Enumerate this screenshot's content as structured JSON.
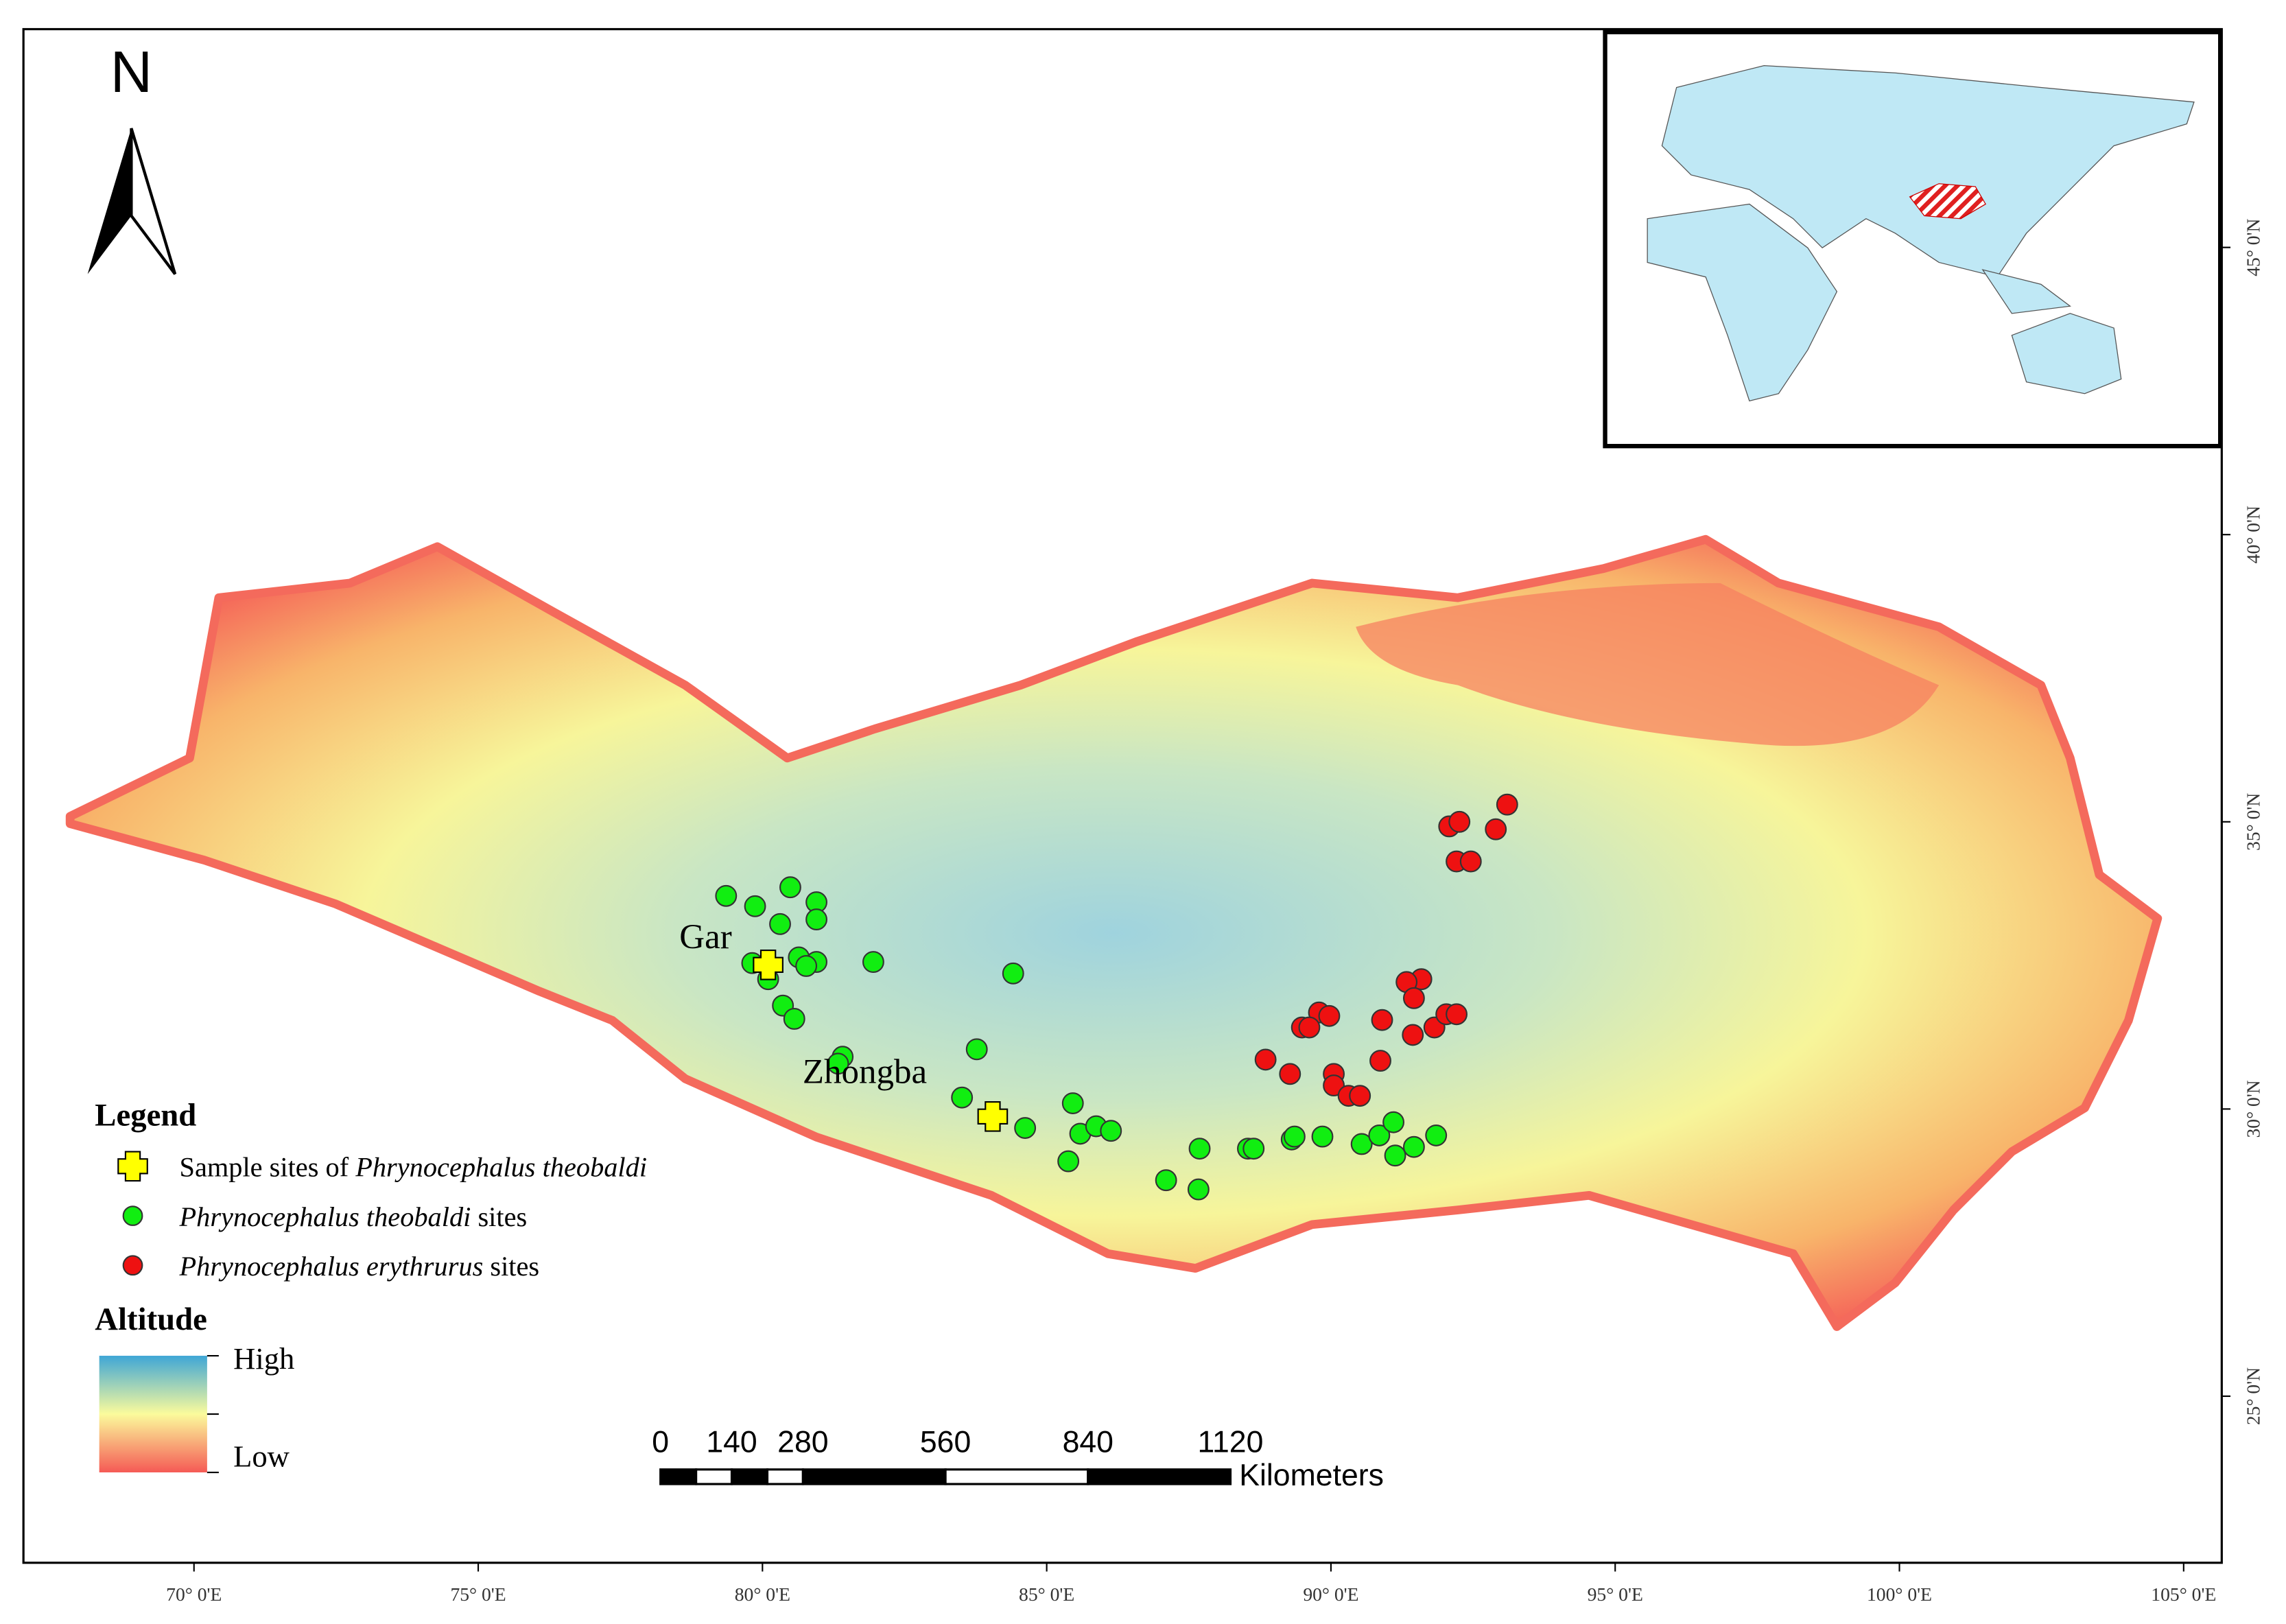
{
  "map": {
    "north": "N",
    "lon_range": [
      67,
      105.67
    ],
    "lat_range": [
      22.1,
      48.8
    ],
    "lon_ticks": [
      {
        "value": 70,
        "label": "70° 0'E"
      },
      {
        "value": 75,
        "label": "75° 0'E"
      },
      {
        "value": 80,
        "label": "80° 0'E"
      },
      {
        "value": 85,
        "label": "85° 0'E"
      },
      {
        "value": 90,
        "label": "90° 0'E"
      },
      {
        "value": 95,
        "label": "95° 0'E"
      },
      {
        "value": 100,
        "label": "100° 0'E"
      },
      {
        "value": 105,
        "label": "105° 0'E"
      }
    ],
    "lat_ticks": [
      {
        "value": 25,
        "label": "25° 0'N"
      },
      {
        "value": 30,
        "label": "30° 0'N"
      },
      {
        "value": 35,
        "label": "35° 0'N"
      },
      {
        "value": 40,
        "label": "40° 0'N"
      },
      {
        "value": 45,
        "label": "45° 0'N"
      }
    ],
    "places": [
      {
        "name": "Gar",
        "lon": 79.0,
        "lat": 32.8
      },
      {
        "name": "Zhongba",
        "lon": 81.8,
        "lat": 30.45
      }
    ],
    "series": [
      {
        "name": "Sample sites of Phrynocephalus theobaldi",
        "color": "#ffff00",
        "marker": "cross",
        "lon": [
          80.1,
          84.05
        ],
        "lat": [
          32.51,
          29.87
        ]
      },
      {
        "name": "Phrynocephalus theobaldi sites",
        "color": "#11ee11",
        "marker": "circle",
        "lon": [
          79.36,
          79.87,
          80.49,
          80.95,
          80.31,
          80.95,
          79.82,
          80.64,
          80.95,
          81.95,
          80.77,
          84.41,
          80.1,
          80.36,
          80.56,
          83.77,
          81.41,
          81.33,
          83.51,
          85.46,
          84.62,
          85.59,
          85.87,
          86.13,
          85.38,
          87.69,
          87.1,
          87.67,
          88.54,
          88.64,
          89.31,
          89.36,
          89.85,
          90.54,
          90.85,
          91.1,
          91.13,
          91.46,
          91.85
        ],
        "lat": [
          33.71,
          33.53,
          33.86,
          33.6,
          33.22,
          33.3,
          32.54,
          32.64,
          32.56,
          32.56,
          32.49,
          32.36,
          32.26,
          31.8,
          31.57,
          31.04,
          30.91,
          30.79,
          30.2,
          30.1,
          29.67,
          29.57,
          29.7,
          29.62,
          29.09,
          29.31,
          28.76,
          28.6,
          29.31,
          29.31,
          29.47,
          29.52,
          29.52,
          29.39,
          29.54,
          29.77,
          29.19,
          29.34,
          29.54
        ]
      },
      {
        "name": "Phrynocephalus erythrurus sites",
        "color": "#ee1111",
        "marker": "circle",
        "lon": [
          92.08,
          92.26,
          93.1,
          92.9,
          92.21,
          92.46,
          91.59,
          91.33,
          91.46,
          89.79,
          89.97,
          89.49,
          89.62,
          91.82,
          91.44,
          90.9,
          92.03,
          92.21,
          88.85,
          89.28,
          90.87,
          90.05,
          90.05,
          90.31,
          90.51
        ],
        "lat": [
          34.92,
          35.0,
          35.3,
          34.87,
          34.31,
          34.31,
          32.26,
          32.21,
          31.93,
          31.68,
          31.62,
          31.42,
          31.42,
          31.42,
          31.29,
          31.55,
          31.65,
          31.65,
          30.86,
          30.61,
          30.84,
          30.61,
          30.41,
          30.23,
          30.23
        ]
      }
    ],
    "legend": {
      "title": "Legend",
      "entries": [
        {
          "prefix": "Sample sites of ",
          "species": "Phrynocephalus theobaldi"
        },
        {
          "species": "Phrynocephalus theobaldi",
          "suffix": " sites"
        },
        {
          "species": "Phrynocephalus erythrurus",
          "suffix": " sites"
        }
      ]
    },
    "altitude": {
      "title": "Altitude",
      "high": "High",
      "low": "Low"
    },
    "scale": {
      "ticks": [
        0,
        140,
        280,
        560,
        840,
        1120
      ],
      "unit": "Kilometers"
    }
  }
}
